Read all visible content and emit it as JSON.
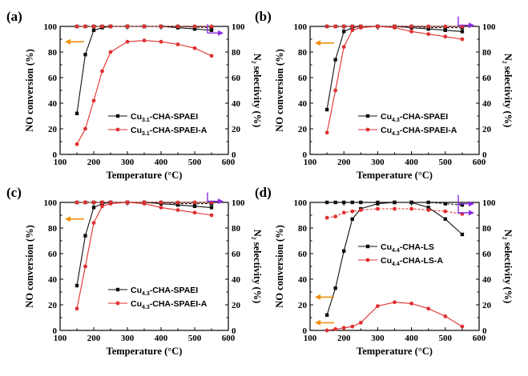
{
  "colors": {
    "black": "#111111",
    "red": "#e03030",
    "orange": "#f0900a",
    "purple": "#8a2be2"
  },
  "chart_data": [
    {
      "type": "line",
      "panel_label": "(a)",
      "xlabel": "Temperature (°C)",
      "ylabel_left": "NO conversion (%)",
      "ylabel_right": "N₂ selectivity (%)",
      "xlim": [
        100,
        600
      ],
      "ylim": [
        0,
        100
      ],
      "xticks": [
        "100",
        "200",
        "300",
        "400",
        "500",
        "600"
      ],
      "yticks": [
        "0",
        "20",
        "40",
        "60",
        "80",
        "100"
      ],
      "legend_position": "middle-right",
      "series": [
        {
          "name": "Cu3.1-CHA-SPAEI",
          "name_base": "Cu",
          "name_sub": "3.1",
          "name_rest": "-CHA-SPAEI",
          "color": "#111111",
          "marker": "square",
          "dashed": false,
          "axis": "left",
          "x": [
            150,
            175,
            200,
            225,
            250,
            300,
            350,
            400,
            450,
            500,
            550
          ],
          "y": [
            32,
            78,
            97,
            99,
            100,
            100,
            100,
            100,
            99,
            98,
            97
          ]
        },
        {
          "name": "Cu3.1-CHA-SPAEI-A",
          "name_base": "Cu",
          "name_sub": "3.1",
          "name_rest": "-CHA-SPAEI-A",
          "color": "#e03030",
          "marker": "circle",
          "dashed": false,
          "axis": "left",
          "x": [
            150,
            175,
            200,
            225,
            250,
            300,
            350,
            400,
            450,
            500,
            550
          ],
          "y": [
            8,
            20,
            42,
            65,
            80,
            88,
            89,
            88,
            86,
            83,
            77
          ]
        },
        {
          "name": "N2 selectivity (Cu3.1-CHA-SPAEI)",
          "color": "#111111",
          "marker": "square",
          "dashed": true,
          "axis": "right",
          "x": [
            150,
            175,
            200,
            225,
            250,
            300,
            350,
            400,
            450,
            500,
            550
          ],
          "y": [
            100,
            100,
            100,
            100,
            100,
            100,
            100,
            100,
            100,
            99.5,
            99
          ]
        },
        {
          "name": "N2 selectivity (Cu3.1-CHA-SPAEI-A)",
          "color": "#e03030",
          "marker": "circle",
          "dashed": true,
          "axis": "right",
          "x": [
            150,
            175,
            200,
            225,
            250,
            300,
            350,
            400,
            450,
            500,
            550
          ],
          "y": [
            100,
            100,
            100,
            100,
            100,
            100,
            100,
            100,
            100,
            100,
            100
          ]
        }
      ],
      "arrows": [
        {
          "color": "#f0900a",
          "direction": "left",
          "value": 88
        },
        {
          "color": "#8a2be2",
          "direction": "right",
          "value": 98
        }
      ]
    },
    {
      "type": "line",
      "panel_label": "(b)",
      "xlabel": "Temperature (°C)",
      "ylabel_left": "NO conversion (%)",
      "ylabel_right": "N₂ selectivity (%)",
      "xlim": [
        100,
        600
      ],
      "ylim": [
        0,
        100
      ],
      "xticks": [
        "100",
        "200",
        "300",
        "400",
        "500",
        "600"
      ],
      "yticks": [
        "0",
        "20",
        "40",
        "60",
        "80",
        "100"
      ],
      "legend_position": "middle-right",
      "series": [
        {
          "name": "Cu4.3-CHA-SPAEI",
          "name_base": "Cu",
          "name_sub": "4.3",
          "name_rest": "-CHA-SPAEI",
          "color": "#111111",
          "marker": "square",
          "dashed": false,
          "axis": "left",
          "x": [
            150,
            175,
            200,
            225,
            250,
            300,
            350,
            400,
            450,
            500,
            550
          ],
          "y": [
            35,
            74,
            96,
            99,
            100,
            100,
            100,
            99,
            98,
            97,
            96
          ]
        },
        {
          "name": "Cu4.3-CHA-SPAEI-A",
          "name_base": "Cu",
          "name_sub": "4.3",
          "name_rest": "-CHA-SPAEI-A",
          "color": "#e03030",
          "marker": "circle",
          "dashed": false,
          "axis": "left",
          "x": [
            150,
            175,
            200,
            225,
            250,
            300,
            350,
            400,
            450,
            500,
            550
          ],
          "y": [
            17,
            50,
            84,
            97,
            99,
            100,
            99,
            96,
            94,
            92,
            90
          ]
        },
        {
          "name": "N2 selectivity (Cu4.3-CHA-SPAEI)",
          "color": "#111111",
          "marker": "square",
          "dashed": true,
          "axis": "right",
          "x": [
            150,
            175,
            200,
            225,
            250,
            300,
            350,
            400,
            450,
            500,
            550
          ],
          "y": [
            100,
            100,
            100,
            100,
            100,
            100,
            100,
            100,
            99,
            99,
            99
          ]
        },
        {
          "name": "N2 selectivity (Cu4.3-CHA-SPAEI-A)",
          "color": "#e03030",
          "marker": "circle",
          "dashed": true,
          "axis": "right",
          "x": [
            150,
            175,
            200,
            225,
            250,
            300,
            350,
            400,
            450,
            500,
            550
          ],
          "y": [
            100,
            100,
            100,
            100,
            100,
            100,
            100,
            100,
            100,
            100,
            100
          ]
        }
      ],
      "arrows": [
        {
          "color": "#f0900a",
          "direction": "left",
          "value": 87
        },
        {
          "color": "#8a2be2",
          "direction": "right",
          "value": 104
        }
      ]
    },
    {
      "type": "line",
      "panel_label": "(c)",
      "xlabel": "Temperature (°C)",
      "ylabel_left": "NO conversion (%)",
      "ylabel_right": "N₂ selectivity (%)",
      "xlim": [
        100,
        600
      ],
      "ylim": [
        0,
        100
      ],
      "xticks": [
        "100",
        "200",
        "300",
        "400",
        "500",
        "600"
      ],
      "yticks": [
        "0",
        "20",
        "40",
        "60",
        "80",
        "100"
      ],
      "legend_position": "lower-right",
      "series": [
        {
          "name": "Cu4.3-CHA-SPAEI",
          "name_base": "Cu",
          "name_sub": "4.3",
          "name_rest": "-CHA-SPAEI",
          "color": "#111111",
          "marker": "square",
          "dashed": false,
          "axis": "left",
          "x": [
            150,
            175,
            200,
            225,
            250,
            300,
            350,
            400,
            450,
            500,
            550
          ],
          "y": [
            35,
            74,
            96,
            99,
            100,
            100,
            100,
            99,
            98,
            97,
            96
          ]
        },
        {
          "name": "Cu4.3-CHA-SPAEI-A",
          "name_base": "Cu",
          "name_sub": "4.3",
          "name_rest": "-CHA-SPAEI-A",
          "color": "#e03030",
          "marker": "circle",
          "dashed": false,
          "axis": "left",
          "x": [
            150,
            175,
            200,
            225,
            250,
            300,
            350,
            400,
            450,
            500,
            550
          ],
          "y": [
            17,
            50,
            84,
            97,
            99,
            100,
            99,
            96,
            94,
            92,
            90
          ]
        },
        {
          "name": "N2 selectivity (Cu4.3-CHA-SPAEI)",
          "color": "#111111",
          "marker": "square",
          "dashed": true,
          "axis": "right",
          "x": [
            150,
            175,
            200,
            225,
            250,
            300,
            350,
            400,
            450,
            500,
            550
          ],
          "y": [
            100,
            100,
            100,
            100,
            100,
            100,
            100,
            100,
            99,
            99,
            99
          ]
        },
        {
          "name": "N2 selectivity (Cu4.3-CHA-SPAEI-A)",
          "color": "#e03030",
          "marker": "circle",
          "dashed": true,
          "axis": "right",
          "x": [
            150,
            175,
            200,
            225,
            250,
            300,
            350,
            400,
            450,
            500,
            550
          ],
          "y": [
            100,
            100,
            100,
            100,
            100,
            100,
            100,
            100,
            100,
            100,
            100
          ]
        }
      ],
      "arrows": [
        {
          "color": "#f0900a",
          "direction": "left",
          "value": 87
        },
        {
          "color": "#8a2be2",
          "direction": "right",
          "value": 104
        }
      ]
    },
    {
      "type": "line",
      "panel_label": "(d)",
      "xlabel": "Temperature (°C)",
      "ylabel_left": "NO conversion (%)",
      "ylabel_right": "N₂ selectivity (%)",
      "xlim": [
        100,
        600
      ],
      "ylim": [
        0,
        100
      ],
      "xticks": [
        "100",
        "200",
        "300",
        "400",
        "500",
        "600"
      ],
      "yticks": [
        "0",
        "20",
        "40",
        "60",
        "80",
        "100"
      ],
      "legend_position": "middle-right",
      "series": [
        {
          "name": "Cu4.4-CHA-LS",
          "name_base": "Cu",
          "name_sub": "4.4",
          "name_rest": "-CHA-LS",
          "color": "#111111",
          "marker": "square",
          "dashed": false,
          "axis": "left",
          "x": [
            150,
            175,
            200,
            225,
            250,
            300,
            350,
            400,
            450,
            500,
            550
          ],
          "y": [
            12,
            33,
            62,
            87,
            95,
            99,
            100,
            100,
            96,
            87,
            75
          ]
        },
        {
          "name": "Cu4.4-CHA-LS-A",
          "name_base": "Cu",
          "name_sub": "4.4",
          "name_rest": "-CHA-LS-A",
          "color": "#e03030",
          "marker": "circle",
          "dashed": false,
          "axis": "left",
          "x": [
            150,
            175,
            200,
            225,
            250,
            300,
            350,
            400,
            450,
            500,
            550
          ],
          "y": [
            0,
            1,
            2,
            3,
            6,
            19,
            22,
            21,
            17,
            11,
            3
          ]
        },
        {
          "name": "N2 selectivity (Cu4.4-CHA-LS)",
          "color": "#111111",
          "marker": "square",
          "dashed": true,
          "axis": "right",
          "x": [
            150,
            175,
            200,
            225,
            250,
            300,
            350,
            400,
            450,
            500,
            550
          ],
          "y": [
            100,
            100,
            100,
            100,
            100,
            100,
            100,
            100,
            100,
            99,
            98
          ]
        },
        {
          "name": "N2 selectivity (Cu4.4-CHA-LS-A)",
          "color": "#e03030",
          "marker": "circle",
          "dashed": true,
          "axis": "right",
          "x": [
            150,
            175,
            200,
            225,
            250,
            300,
            350,
            400,
            450,
            500,
            550
          ],
          "y": [
            88,
            89,
            92,
            93,
            94,
            95,
            95,
            95,
            94,
            93,
            91
          ]
        }
      ],
      "arrows": [
        {
          "color": "#f0900a",
          "direction": "left",
          "value": 26
        },
        {
          "color": "#f0900a",
          "direction": "left",
          "value": 6
        },
        {
          "color": "#8a2be2",
          "direction": "right",
          "value": 102
        },
        {
          "color": "#8a2be2",
          "direction": "right",
          "value": 95
        }
      ]
    }
  ]
}
